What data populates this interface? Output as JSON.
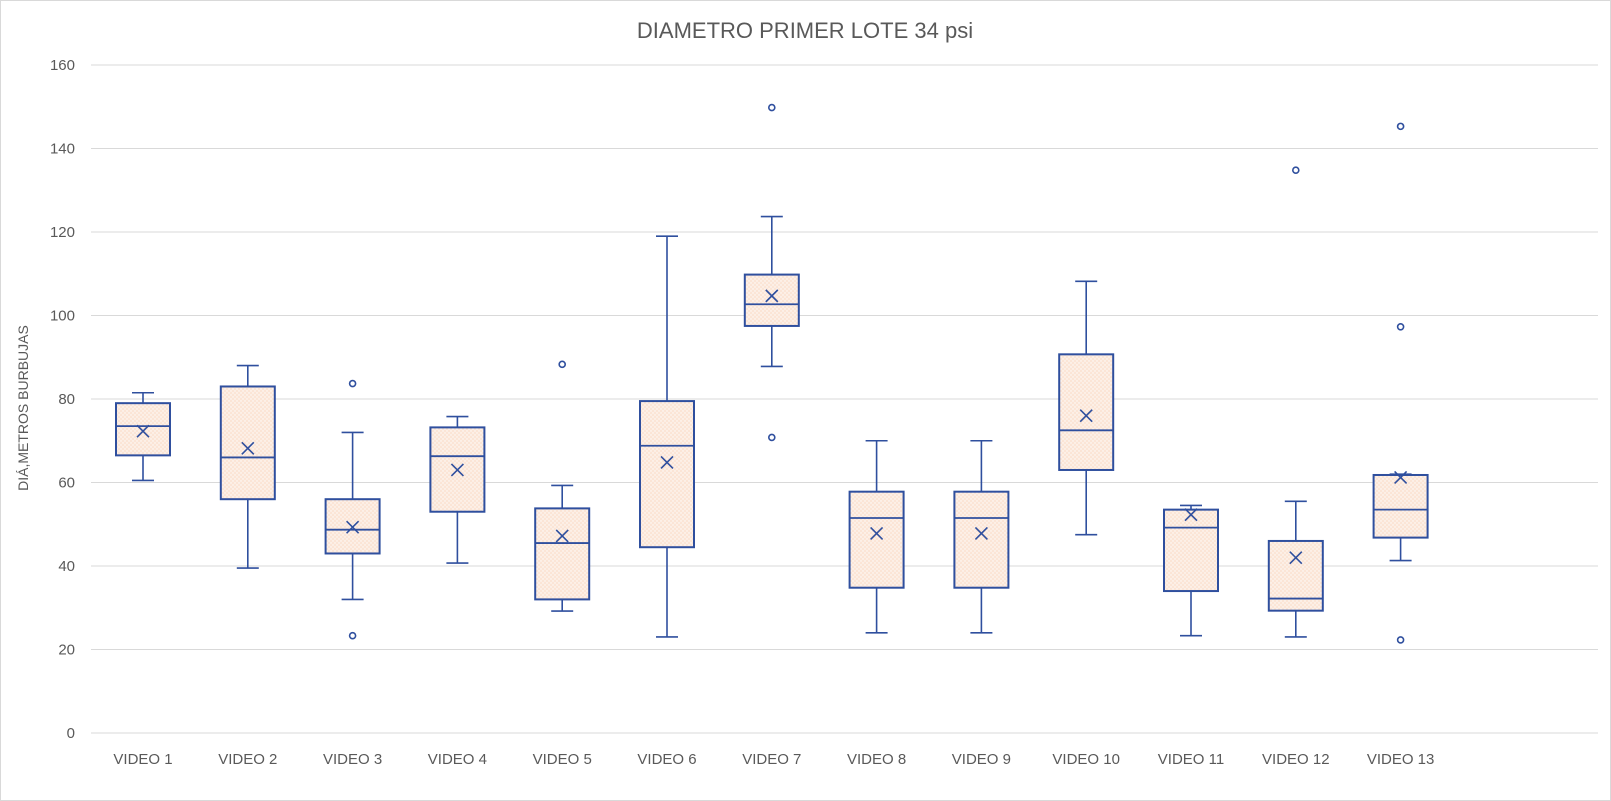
{
  "chart_data": {
    "type": "box",
    "title": "DIAMETRO PRIMER LOTE 34 psi",
    "ylabel": "DIÁ,METROS BURBUJAS",
    "xlabel": "",
    "ylim": [
      0,
      160
    ],
    "yticks": [
      0,
      20,
      40,
      60,
      80,
      100,
      120,
      140,
      160
    ],
    "ytick_labels": [
      "0",
      "20",
      "40",
      "60",
      "80",
      "100",
      "120",
      "140",
      "160"
    ],
    "grid": true,
    "legend": "none",
    "colors": {
      "box_fill": "#fbe5d6",
      "box_stroke": "#2f4f9e",
      "grid": "#d9d9d9",
      "text": "#595959"
    },
    "categories": [
      "VIDEO 1",
      "VIDEO 2",
      "VIDEO 3",
      "VIDEO 4",
      "VIDEO 5",
      "VIDEO 6",
      "VIDEO 7",
      "VIDEO 8",
      "VIDEO 9",
      "VIDEO 10",
      "VIDEO 11",
      "VIDEO 12",
      "VIDEO 13"
    ],
    "boxes": [
      {
        "whisker_low": 60.5,
        "q1": 66.5,
        "median": 73.5,
        "q3": 79,
        "whisker_high": 81.5,
        "mean": 72.3,
        "outliers": []
      },
      {
        "whisker_low": 39.5,
        "q1": 56,
        "median": 66,
        "q3": 83,
        "whisker_high": 88,
        "mean": 68.2,
        "outliers": []
      },
      {
        "whisker_low": 32,
        "q1": 43,
        "median": 48.7,
        "q3": 56,
        "whisker_high": 72,
        "mean": 49.3,
        "outliers": [
          23.3,
          83.7
        ]
      },
      {
        "whisker_low": 40.7,
        "q1": 53,
        "median": 66.3,
        "q3": 73.2,
        "whisker_high": 75.8,
        "mean": 63,
        "outliers": []
      },
      {
        "whisker_low": 29.2,
        "q1": 32,
        "median": 45.5,
        "q3": 53.8,
        "whisker_high": 59.3,
        "mean": 47.2,
        "outliers": [
          88.3
        ]
      },
      {
        "whisker_low": 23,
        "q1": 44.5,
        "median": 68.8,
        "q3": 79.5,
        "whisker_high": 119,
        "mean": 64.8,
        "outliers": []
      },
      {
        "whisker_low": 87.8,
        "q1": 97.5,
        "median": 102.7,
        "q3": 109.8,
        "whisker_high": 123.7,
        "mean": 104.7,
        "outliers": [
          70.8,
          149.8
        ]
      },
      {
        "whisker_low": 24,
        "q1": 34.8,
        "median": 51.5,
        "q3": 57.8,
        "whisker_high": 70,
        "mean": 47.8,
        "outliers": []
      },
      {
        "whisker_low": 24,
        "q1": 34.8,
        "median": 51.5,
        "q3": 57.8,
        "whisker_high": 70,
        "mean": 47.8,
        "outliers": []
      },
      {
        "whisker_low": 47.5,
        "q1": 63,
        "median": 72.5,
        "q3": 90.7,
        "whisker_high": 108.2,
        "mean": 76,
        "outliers": []
      },
      {
        "whisker_low": 23.3,
        "q1": 34,
        "median": 49.2,
        "q3": 53.5,
        "whisker_high": 54.5,
        "mean": 52.3,
        "outliers": []
      },
      {
        "whisker_low": 23,
        "q1": 29.3,
        "median": 32.2,
        "q3": 46,
        "whisker_high": 55.5,
        "mean": 42,
        "outliers": [
          134.8
        ]
      },
      {
        "whisker_low": 41.3,
        "q1": 46.8,
        "median": 53.5,
        "q3": 61.8,
        "whisker_high": 62,
        "mean": 61.2,
        "outliers": [
          22.3,
          97.3,
          145.3
        ]
      }
    ]
  }
}
